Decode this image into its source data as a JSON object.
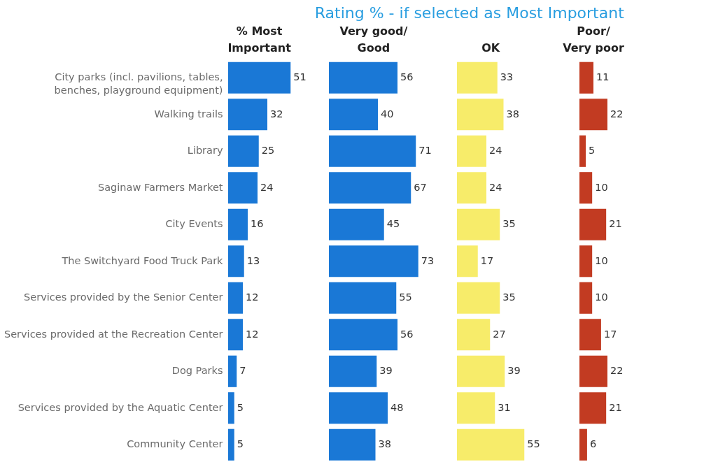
{
  "chart_data": [
    {
      "type": "bar",
      "orientation": "horizontal",
      "title": "% Most Important",
      "categories": [
        "City parks (incl. pavilions, tables, benches, playground equipment)",
        "Walking trails",
        "Library",
        "Saginaw Farmers Market",
        "City Events",
        "The Switchyard Food Truck Park",
        "Services provided by the Senior Center",
        "Services provided at the Recreation Center",
        "Dog Parks",
        "Services provided by the Aquatic Center",
        "Community Center"
      ],
      "values": [
        51,
        32,
        25,
        24,
        16,
        13,
        12,
        12,
        7,
        5,
        5
      ],
      "color": "#1a78d6",
      "data_labels": true,
      "tick_labels": "y"
    },
    {
      "type": "bar",
      "orientation": "horizontal",
      "title": "Very good/ Good",
      "annotations": [
        "Rating % - if selected as Most Important"
      ],
      "categories": [
        "City parks (incl. pavilions, tables, benches, playground equipment)",
        "Walking trails",
        "Library",
        "Saginaw Farmers Market",
        "City Events",
        "The Switchyard Food Truck Park",
        "Services provided by the Senior Center",
        "Services provided at the Recreation Center",
        "Dog Parks",
        "Services provided by the Aquatic Center",
        "Community Center"
      ],
      "values": [
        56,
        40,
        71,
        67,
        45,
        73,
        55,
        56,
        39,
        48,
        38
      ],
      "color": "#1a78d6",
      "data_labels": true,
      "tick_labels": false
    },
    {
      "type": "bar",
      "orientation": "horizontal",
      "title": "OK",
      "categories": [
        "City parks (incl. pavilions, tables, benches, playground equipment)",
        "Walking trails",
        "Library",
        "Saginaw Farmers Market",
        "City Events",
        "The Switchyard Food Truck Park",
        "Services provided by the Senior Center",
        "Services provided at the Recreation Center",
        "Dog Parks",
        "Services provided by the Aquatic Center",
        "Community Center"
      ],
      "values": [
        33,
        38,
        24,
        24,
        35,
        17,
        35,
        27,
        39,
        31,
        55
      ],
      "color": "#f7ec6a",
      "data_labels": true,
      "tick_labels": false
    },
    {
      "type": "bar",
      "orientation": "horizontal",
      "title": "Poor/ Very poor",
      "categories": [
        "City parks (incl. pavilions, tables, benches, playground equipment)",
        "Walking trails",
        "Library",
        "Saginaw Farmers Market",
        "City Events",
        "The Switchyard Food Truck Park",
        "Services provided by the Senior Center",
        "Services provided at the Recreation Center",
        "Dog Parks",
        "Services provided by the Aquatic Center",
        "Community Center"
      ],
      "values": [
        11,
        22,
        5,
        10,
        21,
        10,
        10,
        17,
        22,
        21,
        6
      ],
      "color": "#c23b22",
      "data_labels": true,
      "tick_labels": false
    }
  ]
}
